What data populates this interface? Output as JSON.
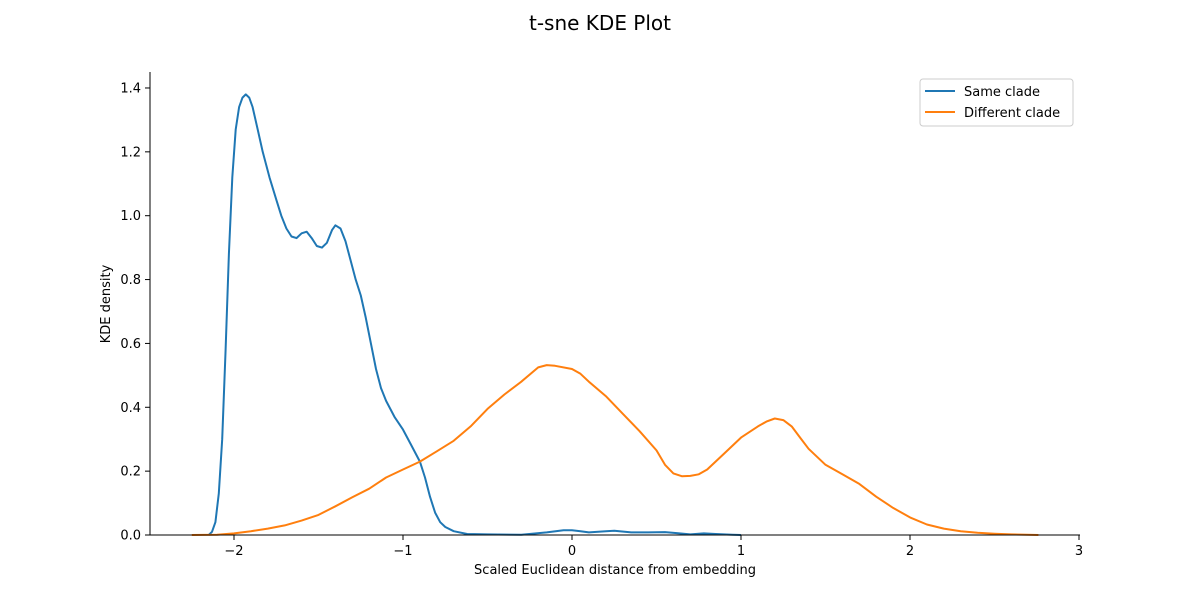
{
  "chart_data": {
    "type": "line",
    "title": "t-sne KDE Plot",
    "xlabel": "Scaled Euclidean distance from embedding",
    "ylabel": "KDE density",
    "xlim": [
      -2.5,
      3.05
    ],
    "ylim": [
      0,
      1.45
    ],
    "xticks": [
      -2,
      -1,
      0,
      1,
      2,
      3
    ],
    "xtick_labels": [
      "−2",
      "−1",
      "0",
      "1",
      "2",
      "3"
    ],
    "yticks": [
      0.0,
      0.2,
      0.4,
      0.6,
      0.8,
      1.0,
      1.2,
      1.4
    ],
    "ytick_labels": [
      "0.0",
      "0.2",
      "0.4",
      "0.6",
      "0.8",
      "1.0",
      "1.2",
      "1.4"
    ],
    "grid": false,
    "legend_position": "top-right",
    "series": [
      {
        "name": "Same clade",
        "color": "#1f77b4",
        "points": [
          [
            -2.15,
            0.0
          ],
          [
            -2.13,
            0.01
          ],
          [
            -2.11,
            0.04
          ],
          [
            -2.09,
            0.13
          ],
          [
            -2.07,
            0.3
          ],
          [
            -2.05,
            0.58
          ],
          [
            -2.03,
            0.88
          ],
          [
            -2.01,
            1.12
          ],
          [
            -1.99,
            1.27
          ],
          [
            -1.97,
            1.34
          ],
          [
            -1.95,
            1.37
          ],
          [
            -1.93,
            1.38
          ],
          [
            -1.91,
            1.37
          ],
          [
            -1.89,
            1.34
          ],
          [
            -1.86,
            1.27
          ],
          [
            -1.83,
            1.2
          ],
          [
            -1.79,
            1.12
          ],
          [
            -1.75,
            1.05
          ],
          [
            -1.72,
            1.0
          ],
          [
            -1.69,
            0.96
          ],
          [
            -1.66,
            0.935
          ],
          [
            -1.63,
            0.93
          ],
          [
            -1.6,
            0.945
          ],
          [
            -1.57,
            0.95
          ],
          [
            -1.54,
            0.93
          ],
          [
            -1.51,
            0.905
          ],
          [
            -1.48,
            0.9
          ],
          [
            -1.45,
            0.915
          ],
          [
            -1.42,
            0.955
          ],
          [
            -1.4,
            0.97
          ],
          [
            -1.37,
            0.96
          ],
          [
            -1.34,
            0.92
          ],
          [
            -1.31,
            0.86
          ],
          [
            -1.28,
            0.8
          ],
          [
            -1.25,
            0.75
          ],
          [
            -1.22,
            0.68
          ],
          [
            -1.19,
            0.6
          ],
          [
            -1.16,
            0.52
          ],
          [
            -1.13,
            0.46
          ],
          [
            -1.1,
            0.42
          ],
          [
            -1.05,
            0.37
          ],
          [
            -1.0,
            0.33
          ],
          [
            -0.95,
            0.28
          ],
          [
            -0.9,
            0.23
          ],
          [
            -0.87,
            0.18
          ],
          [
            -0.84,
            0.12
          ],
          [
            -0.81,
            0.07
          ],
          [
            -0.78,
            0.04
          ],
          [
            -0.75,
            0.025
          ],
          [
            -0.7,
            0.012
          ],
          [
            -0.62,
            0.003
          ],
          [
            -0.5,
            0.002
          ],
          [
            -0.3,
            0.001
          ],
          [
            -0.15,
            0.008
          ],
          [
            -0.05,
            0.015
          ],
          [
            0.0,
            0.015
          ],
          [
            0.05,
            0.012
          ],
          [
            0.1,
            0.008
          ],
          [
            0.2,
            0.012
          ],
          [
            0.25,
            0.013
          ],
          [
            0.35,
            0.008
          ],
          [
            0.45,
            0.008
          ],
          [
            0.55,
            0.009
          ],
          [
            0.62,
            0.006
          ],
          [
            0.7,
            0.002
          ],
          [
            0.78,
            0.005
          ],
          [
            0.85,
            0.003
          ],
          [
            0.95,
            0.001
          ],
          [
            1.0,
            0.0
          ]
        ]
      },
      {
        "name": "Different clade",
        "color": "#ff7f0e",
        "points": [
          [
            -2.25,
            0.0
          ],
          [
            -2.1,
            0.001
          ],
          [
            -2.0,
            0.005
          ],
          [
            -1.9,
            0.012
          ],
          [
            -1.8,
            0.02
          ],
          [
            -1.7,
            0.03
          ],
          [
            -1.6,
            0.045
          ],
          [
            -1.5,
            0.063
          ],
          [
            -1.4,
            0.09
          ],
          [
            -1.3,
            0.118
          ],
          [
            -1.2,
            0.145
          ],
          [
            -1.1,
            0.18
          ],
          [
            -1.0,
            0.205
          ],
          [
            -0.9,
            0.23
          ],
          [
            -0.8,
            0.262
          ],
          [
            -0.7,
            0.295
          ],
          [
            -0.6,
            0.34
          ],
          [
            -0.5,
            0.395
          ],
          [
            -0.4,
            0.44
          ],
          [
            -0.3,
            0.48
          ],
          [
            -0.2,
            0.525
          ],
          [
            -0.15,
            0.532
          ],
          [
            -0.1,
            0.53
          ],
          [
            0.0,
            0.52
          ],
          [
            0.05,
            0.505
          ],
          [
            0.1,
            0.48
          ],
          [
            0.2,
            0.435
          ],
          [
            0.3,
            0.38
          ],
          [
            0.4,
            0.325
          ],
          [
            0.5,
            0.265
          ],
          [
            0.55,
            0.22
          ],
          [
            0.6,
            0.193
          ],
          [
            0.65,
            0.184
          ],
          [
            0.7,
            0.185
          ],
          [
            0.75,
            0.19
          ],
          [
            0.8,
            0.205
          ],
          [
            0.9,
            0.255
          ],
          [
            1.0,
            0.305
          ],
          [
            1.1,
            0.34
          ],
          [
            1.15,
            0.355
          ],
          [
            1.2,
            0.365
          ],
          [
            1.25,
            0.36
          ],
          [
            1.3,
            0.34
          ],
          [
            1.35,
            0.305
          ],
          [
            1.4,
            0.27
          ],
          [
            1.5,
            0.22
          ],
          [
            1.6,
            0.19
          ],
          [
            1.7,
            0.16
          ],
          [
            1.8,
            0.12
          ],
          [
            1.9,
            0.085
          ],
          [
            2.0,
            0.055
          ],
          [
            2.1,
            0.033
          ],
          [
            2.2,
            0.02
          ],
          [
            2.3,
            0.012
          ],
          [
            2.4,
            0.007
          ],
          [
            2.5,
            0.004
          ],
          [
            2.6,
            0.002
          ],
          [
            2.76,
            0.0
          ]
        ]
      }
    ]
  }
}
